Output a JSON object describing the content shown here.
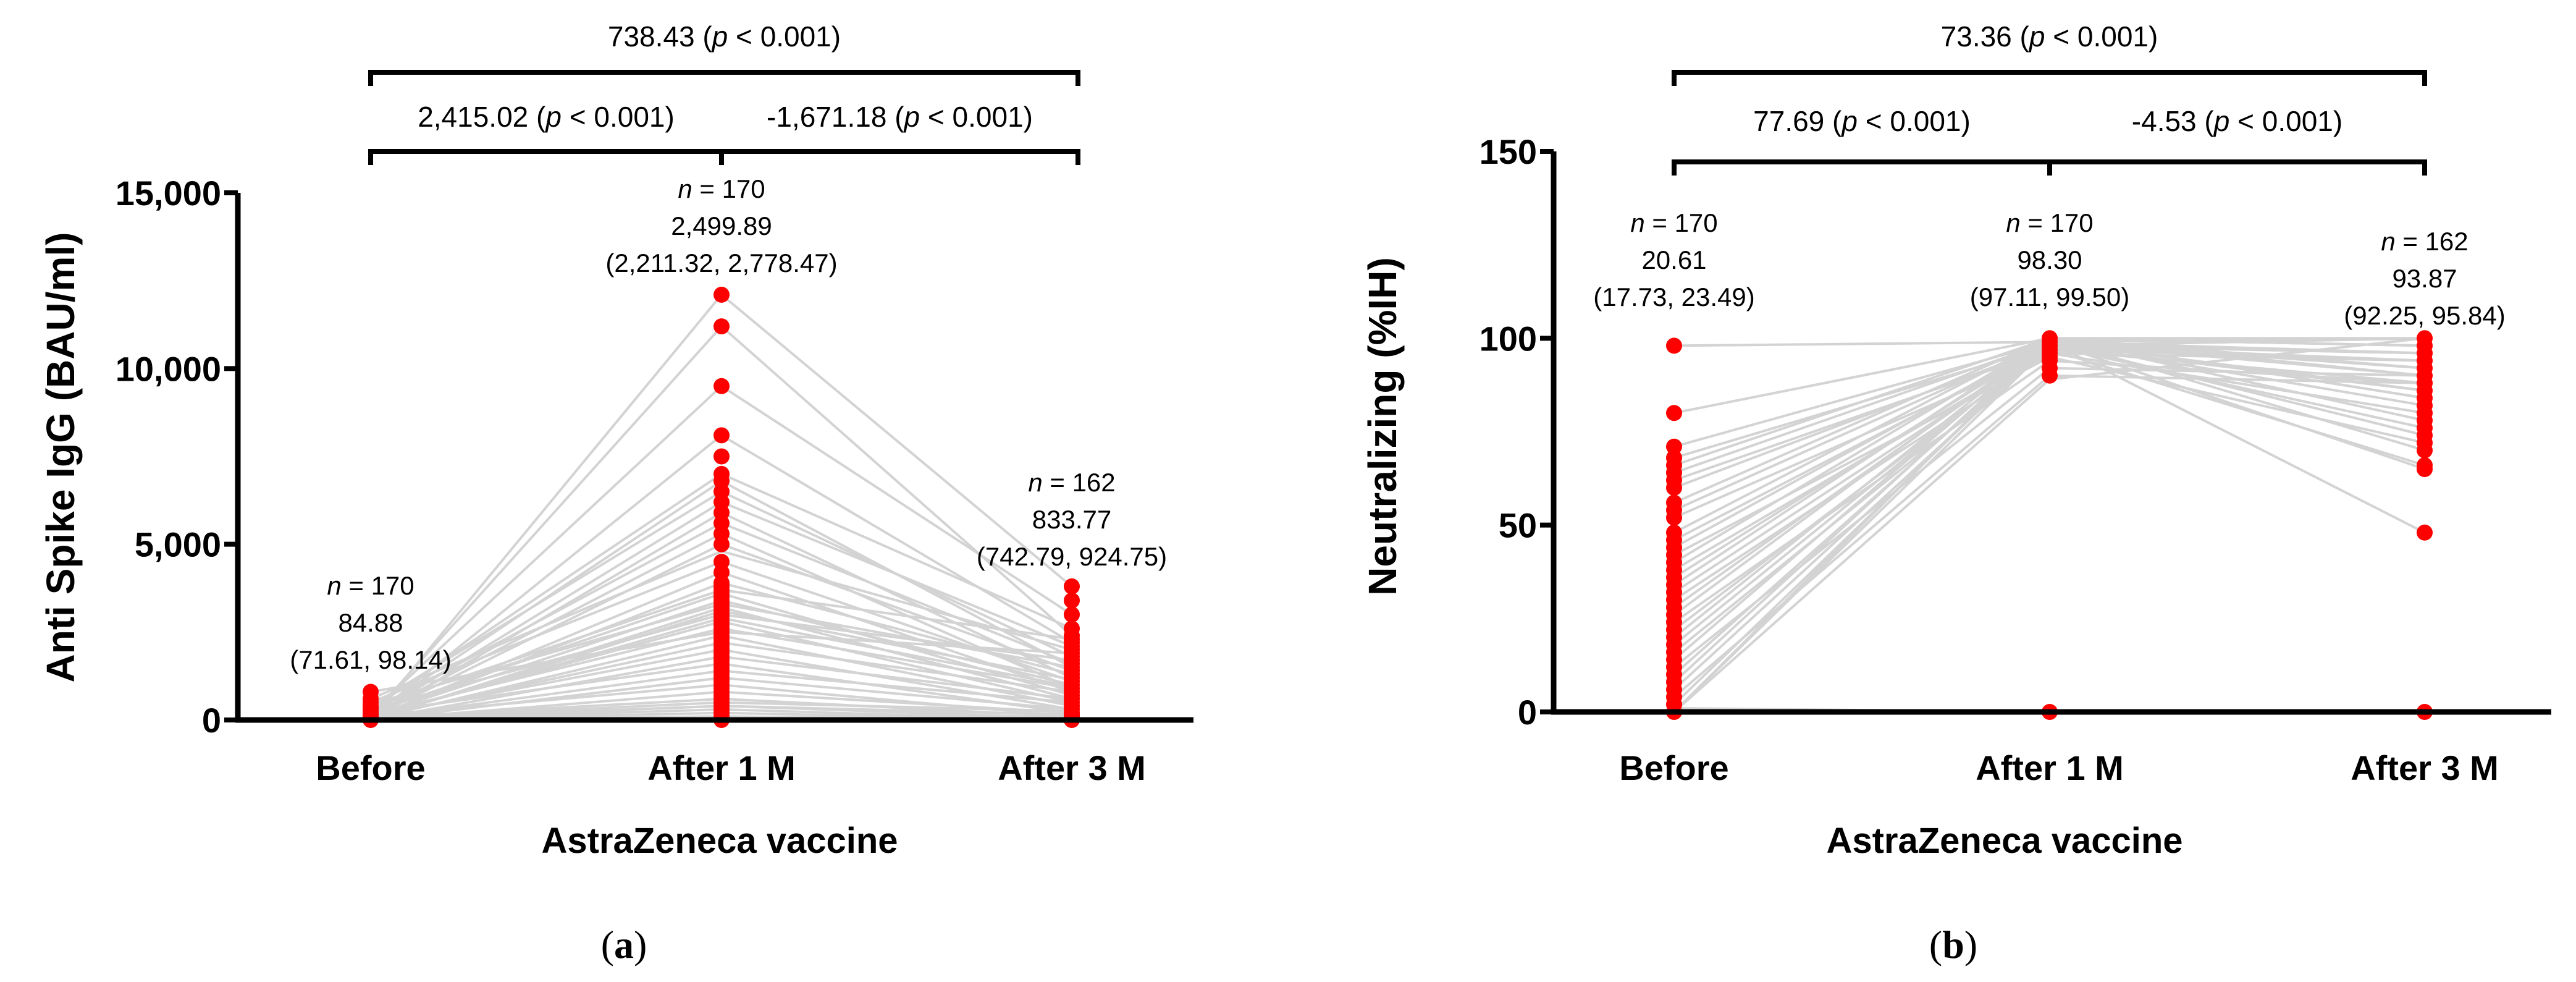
{
  "colors": {
    "points": "#ff0000",
    "lines": "#d3d3d3",
    "axis": "#000000"
  },
  "panels": [
    {
      "caption_letter": "a",
      "chart_data": {
        "type": "scatter",
        "subtype": "paired-dot-line",
        "xlabel": "AstraZeneca vaccine",
        "ylabel": "Anti Spike IgG (BAU/ml)",
        "categories": [
          "Before",
          "After 1 M",
          "After 3 M"
        ],
        "ylim": [
          0,
          15000
        ],
        "yticks": [
          0,
          5000,
          10000,
          15000
        ],
        "ytick_labels": [
          "0",
          "5,000",
          "10,000",
          "15,000"
        ],
        "groups": [
          {
            "n_label": "n",
            "n_rest": " = 170",
            "value": "84.88",
            "ci": "(71.61, 98.14)",
            "points": [
              0,
              20,
              40,
              60,
              80,
              100,
              130,
              160,
              200,
              250,
              300,
              350,
              400,
              500,
              600,
              800
            ]
          },
          {
            "n_label": "n",
            "n_rest": " = 170",
            "value": "2,499.89",
            "ci": "(2,211.32, 2,778.47)",
            "points": [
              0,
              100,
              200,
              300,
              400,
              500,
              600,
              700,
              800,
              900,
              1000,
              1100,
              1200,
              1300,
              1400,
              1500,
              1600,
              1700,
              1800,
              1900,
              2000,
              2100,
              2200,
              2300,
              2400,
              2500,
              2600,
              2700,
              2800,
              2900,
              3000,
              3100,
              3200,
              3300,
              3400,
              3500,
              3600,
              3700,
              3800,
              3900,
              4200,
              4500,
              5000,
              5300,
              5600,
              5900,
              6200,
              6500,
              6800,
              7000,
              7500,
              8100,
              9500,
              11200,
              12100
            ]
          },
          {
            "n_label": "n",
            "n_rest": " = 162",
            "value": "833.77",
            "ci": "(742.79, 924.75)",
            "points": [
              0,
              50,
              100,
              150,
              200,
              300,
              400,
              500,
              600,
              700,
              800,
              900,
              1000,
              1100,
              1200,
              1300,
              1400,
              1500,
              1600,
              1700,
              1800,
              1900,
              2000,
              2100,
              2200,
              2300,
              2400,
              2600,
              3000,
              3400,
              3800
            ]
          }
        ],
        "pair_lines": [
          [
            0,
            12100,
            3800
          ],
          [
            100,
            11200,
            2400
          ],
          [
            200,
            9500,
            3000
          ],
          [
            50,
            8100,
            2200
          ],
          [
            300,
            7000,
            2600
          ],
          [
            150,
            6800,
            1500
          ],
          [
            400,
            6500,
            1800
          ],
          [
            80,
            6200,
            2100
          ],
          [
            0,
            5900,
            1200
          ],
          [
            250,
            5600,
            1600
          ],
          [
            120,
            5300,
            900
          ],
          [
            60,
            5000,
            1400
          ],
          [
            500,
            4500,
            1100
          ],
          [
            40,
            4200,
            800
          ],
          [
            30,
            3900,
            1300
          ],
          [
            200,
            3600,
            700
          ],
          [
            100,
            3400,
            1000
          ],
          [
            0,
            3200,
            600
          ],
          [
            300,
            3000,
            1700
          ],
          [
            80,
            2800,
            500
          ],
          [
            150,
            2600,
            900
          ],
          [
            20,
            2400,
            400
          ],
          [
            60,
            2200,
            800
          ],
          [
            100,
            2000,
            300
          ],
          [
            0,
            1800,
            600
          ],
          [
            200,
            1600,
            200
          ],
          [
            40,
            1400,
            500
          ],
          [
            0,
            1200,
            300
          ],
          [
            120,
            1000,
            100
          ],
          [
            0,
            800,
            200
          ],
          [
            60,
            600,
            100
          ],
          [
            20,
            400,
            50
          ],
          [
            0,
            300,
            0
          ],
          [
            800,
            2500,
            1900
          ],
          [
            350,
            3700,
            2300
          ],
          [
            600,
            4800,
            2000
          ],
          [
            450,
            3300,
            1500
          ],
          [
            10,
            3100,
            1150
          ],
          [
            70,
            2900,
            950
          ],
          [
            0,
            200,
            0
          ],
          [
            0,
            400,
            150
          ],
          [
            30,
            500,
            250
          ],
          [
            0,
            100,
            0
          ]
        ],
        "comparisons": [
          {
            "from": "Before",
            "to": "After 3 M",
            "level": 2,
            "value": "738.43",
            "p_label": "p",
            "p_rest": " < 0.001)"
          },
          {
            "from": "Before",
            "to": "After 1 M",
            "level": 1,
            "value": "2,415.02",
            "p_label": "p",
            "p_rest": " < 0.001)"
          },
          {
            "from": "After 1 M",
            "to": "After 3 M",
            "level": 1,
            "value": "-1,671.18",
            "p_label": "p",
            "p_rest": " < 0.001)"
          }
        ]
      }
    },
    {
      "caption_letter": "b",
      "chart_data": {
        "type": "scatter",
        "subtype": "paired-dot-line",
        "xlabel": "AstraZeneca vaccine",
        "ylabel": "Neutralizing (%IH)",
        "categories": [
          "Before",
          "After 1 M",
          "After 3 M"
        ],
        "ylim": [
          0,
          150
        ],
        "yticks": [
          0,
          50,
          100,
          150
        ],
        "ytick_labels": [
          "0",
          "50",
          "100",
          "150"
        ],
        "groups": [
          {
            "n_label": "n",
            "n_rest": " = 170",
            "value": "20.61",
            "ci": "(17.73, 23.49)",
            "points": [
              0,
              2,
              4,
              6,
              8,
              10,
              12,
              14,
              16,
              18,
              20,
              22,
              24,
              26,
              28,
              30,
              32,
              34,
              36,
              38,
              40,
              42,
              44,
              46,
              48,
              52,
              54,
              56,
              60,
              62,
              64,
              66,
              68,
              71,
              80,
              98
            ]
          },
          {
            "n_label": "n",
            "n_rest": " = 170",
            "value": "98.30",
            "ci": "(97.11, 99.50)",
            "points": [
              0,
              90,
              92,
              94,
              95,
              96,
              97,
              98,
              99,
              100
            ]
          },
          {
            "n_label": "n",
            "n_rest": " = 162",
            "value": "93.87",
            "ci": "(92.25, 95.84)",
            "points": [
              0,
              48,
              65,
              66,
              70,
              72,
              74,
              76,
              78,
              80,
              82,
              84,
              86,
              88,
              90,
              92,
              94,
              96,
              98,
              100
            ]
          }
        ],
        "pair_lines": [
          [
            98,
            99,
            48
          ],
          [
            80,
            100,
            100
          ],
          [
            71,
            99,
            96
          ],
          [
            68,
            98,
            94
          ],
          [
            66,
            100,
            92
          ],
          [
            64,
            99,
            90
          ],
          [
            62,
            97,
            88
          ],
          [
            60,
            98,
            86
          ],
          [
            56,
            100,
            84
          ],
          [
            54,
            99,
            82
          ],
          [
            52,
            96,
            80
          ],
          [
            48,
            100,
            78
          ],
          [
            46,
            98,
            76
          ],
          [
            44,
            99,
            74
          ],
          [
            42,
            95,
            72
          ],
          [
            40,
            100,
            70
          ],
          [
            38,
            97,
            66
          ],
          [
            36,
            99,
            65
          ],
          [
            34,
            100,
            98
          ],
          [
            32,
            98,
            96
          ],
          [
            30,
            96,
            94
          ],
          [
            28,
            99,
            92
          ],
          [
            26,
            100,
            90
          ],
          [
            24,
            94,
            88
          ],
          [
            22,
            98,
            100
          ],
          [
            20,
            100,
            98
          ],
          [
            18,
            99,
            96
          ],
          [
            16,
            97,
            94
          ],
          [
            14,
            100,
            92
          ],
          [
            12,
            92,
            90
          ],
          [
            10,
            99,
            100
          ],
          [
            8,
            100,
            98
          ],
          [
            6,
            98,
            96
          ],
          [
            4,
            90,
            88
          ],
          [
            2,
            99,
            86
          ],
          [
            0,
            100,
            84
          ],
          [
            0,
            98,
            100
          ],
          [
            0,
            0,
            0
          ],
          [
            1,
            0,
            0
          ],
          [
            0,
            89,
            100
          ]
        ],
        "comparisons": [
          {
            "from": "Before",
            "to": "After 3 M",
            "level": 2,
            "value": "73.36",
            "p_label": "p",
            "p_rest": " < 0.001)"
          },
          {
            "from": "Before",
            "to": "After 1 M",
            "level": 1,
            "value": "77.69",
            "p_label": "p",
            "p_rest": " < 0.001)"
          },
          {
            "from": "After 1 M",
            "to": "After 3 M",
            "level": 1,
            "value": "-4.53",
            "p_label": "p",
            "p_rest": " < 0.001)"
          }
        ]
      }
    }
  ]
}
